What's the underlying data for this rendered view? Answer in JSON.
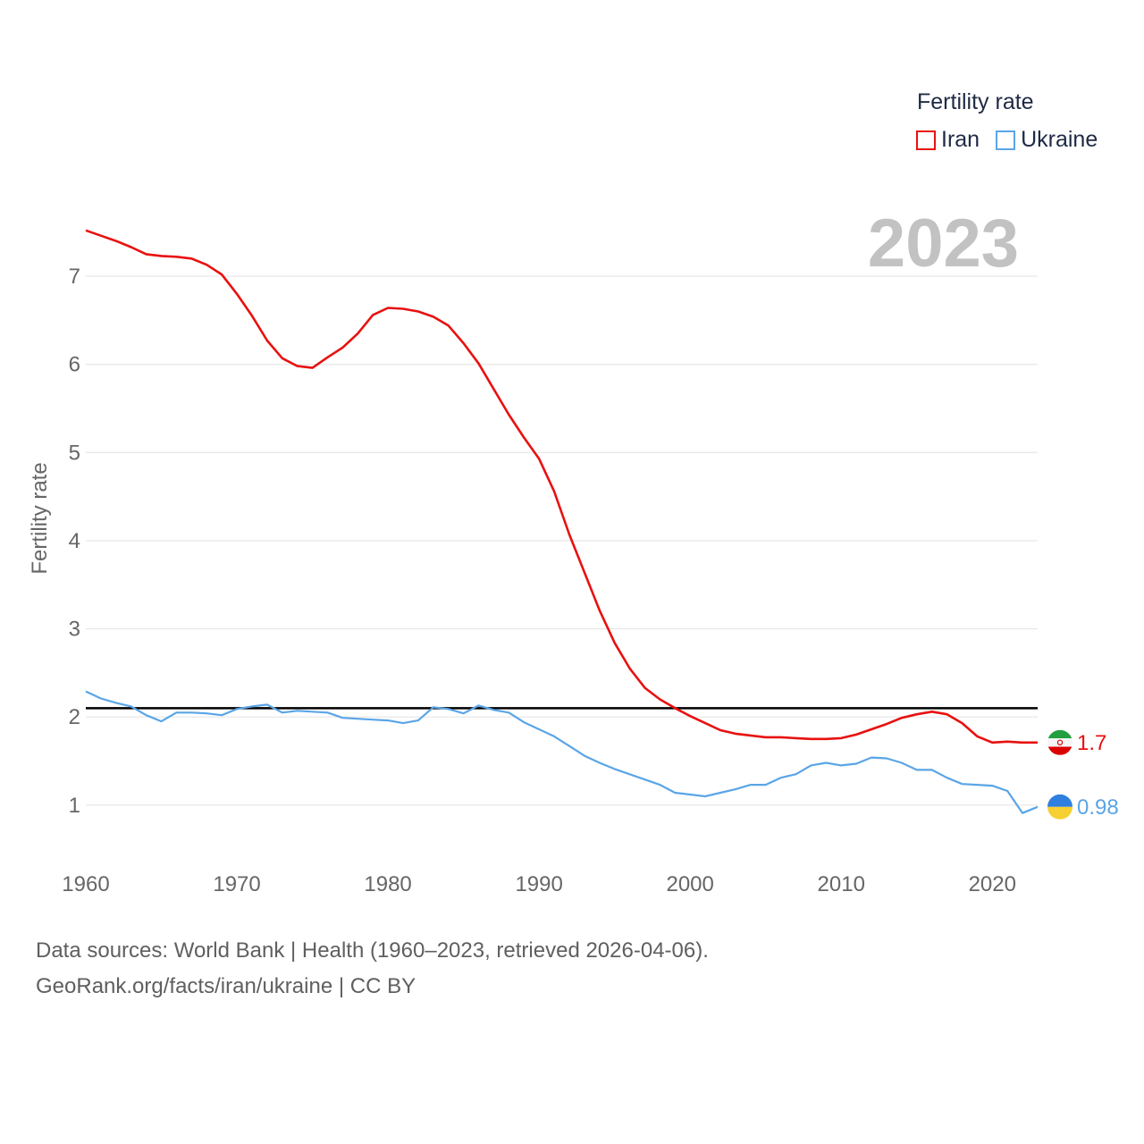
{
  "legend": {
    "title": "Fertility rate",
    "items": [
      {
        "label": "Iran",
        "color": "#e8110f"
      },
      {
        "label": "Ukraine",
        "color": "#5aa5e6"
      }
    ]
  },
  "source": {
    "line1": "Data sources: World Bank | Health (1960–2023, retrieved 2026-04-06).",
    "line2": "GeoRank.org/facts/iran/ukraine | CC BY"
  },
  "chart_data": {
    "type": "line",
    "title": "Fertility rate",
    "year_label": "2023",
    "xlabel": "",
    "ylabel": "Fertility rate",
    "xlim": [
      1960,
      2023
    ],
    "ylim": [
      0.4,
      7.7
    ],
    "x_ticks": [
      1960,
      1970,
      1980,
      1990,
      2000,
      2010,
      2020
    ],
    "y_ticks": [
      1,
      2,
      3,
      4,
      5,
      6,
      7
    ],
    "reference_line": {
      "value": 2.1,
      "color": "#000000"
    },
    "x": [
      1960,
      1961,
      1962,
      1963,
      1964,
      1965,
      1966,
      1967,
      1968,
      1969,
      1970,
      1971,
      1972,
      1973,
      1974,
      1975,
      1976,
      1977,
      1978,
      1979,
      1980,
      1981,
      1982,
      1983,
      1984,
      1985,
      1986,
      1987,
      1988,
      1989,
      1990,
      1991,
      1992,
      1993,
      1994,
      1995,
      1996,
      1997,
      1998,
      1999,
      2000,
      2001,
      2002,
      2003,
      2004,
      2005,
      2006,
      2007,
      2008,
      2009,
      2010,
      2011,
      2012,
      2013,
      2014,
      2015,
      2016,
      2017,
      2018,
      2019,
      2020,
      2021,
      2022,
      2023
    ],
    "series": [
      {
        "name": "Iran",
        "color": "#e8110f",
        "end_label": "1.7",
        "values": [
          7.52,
          7.46,
          7.4,
          7.33,
          7.25,
          7.23,
          7.22,
          7.2,
          7.13,
          7.02,
          6.8,
          6.55,
          6.27,
          6.07,
          5.98,
          5.96,
          6.08,
          6.19,
          6.35,
          6.56,
          6.64,
          6.63,
          6.6,
          6.54,
          6.44,
          6.24,
          6.01,
          5.72,
          5.43,
          5.17,
          4.93,
          4.56,
          4.07,
          3.64,
          3.21,
          2.84,
          2.55,
          2.33,
          2.2,
          2.1,
          2.01,
          1.93,
          1.85,
          1.81,
          1.79,
          1.77,
          1.77,
          1.76,
          1.75,
          1.75,
          1.76,
          1.8,
          1.86,
          1.92,
          1.99,
          2.03,
          2.06,
          2.03,
          1.93,
          1.78,
          1.71,
          1.72,
          1.71,
          1.71
        ]
      },
      {
        "name": "Ukraine",
        "color": "#5aa5e6",
        "end_label": "0.98",
        "values": [
          2.29,
          2.21,
          2.16,
          2.12,
          2.02,
          1.95,
          2.05,
          2.05,
          2.04,
          2.02,
          2.09,
          2.12,
          2.14,
          2.05,
          2.07,
          2.06,
          2.05,
          1.99,
          1.98,
          1.97,
          1.96,
          1.93,
          1.96,
          2.11,
          2.09,
          2.04,
          2.13,
          2.08,
          2.05,
          1.94,
          1.86,
          1.78,
          1.67,
          1.56,
          1.48,
          1.41,
          1.35,
          1.29,
          1.23,
          1.14,
          1.12,
          1.1,
          1.14,
          1.18,
          1.23,
          1.23,
          1.31,
          1.35,
          1.45,
          1.48,
          1.45,
          1.47,
          1.54,
          1.53,
          1.48,
          1.4,
          1.4,
          1.31,
          1.24,
          1.23,
          1.22,
          1.16,
          0.91,
          0.98
        ]
      }
    ]
  }
}
